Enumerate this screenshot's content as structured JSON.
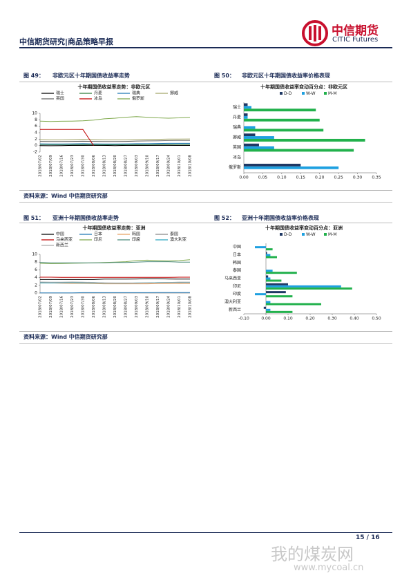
{
  "header": {
    "title": "中信期货研究|商品策略早报",
    "logo_cn": "中信期货",
    "logo_en": "CITIC Futures"
  },
  "figures": [
    {
      "number": "图 49：",
      "title": "非欧元区十年期国债收益率走势"
    },
    {
      "number": "图 50：",
      "title": "非欧元区十年期国债收益率价格表现"
    },
    {
      "number": "图 51：",
      "title": "亚洲十年期国债收益率走势"
    },
    {
      "number": "图 52：",
      "title": "亚洲十年期国债收益率价格表现"
    }
  ],
  "sources": [
    "资料来源：Wind 中信期货研究部",
    "资料来源：Wind 中信期货研究部"
  ],
  "chart_data": [
    {
      "type": "line",
      "title": "十年期国债收益率走势：非欧元区",
      "x": [
        "2018/07/02",
        "2018/07/09",
        "2018/07/16",
        "2018/07/23",
        "2018/07/30",
        "2018/08/06",
        "2018/08/13",
        "2018/08/20",
        "2018/08/27",
        "2018/09/03",
        "2018/09/10",
        "2018/09/17",
        "2018/09/24",
        "2018/10/01",
        "2018/10/08"
      ],
      "ylim": [
        -2,
        10
      ],
      "yticks": [
        -2,
        0,
        2,
        4,
        6,
        8,
        10
      ],
      "series": [
        {
          "name": "瑞士",
          "color": "#000000",
          "values": [
            0.0,
            -0.05,
            0.0,
            0.05,
            0.05,
            0.1,
            0.05,
            0.0,
            0.05,
            0.1,
            0.05,
            0.1,
            0.1,
            0.05,
            0.05
          ]
        },
        {
          "name": "丹麦",
          "color": "#2f7d3a",
          "values": [
            0.35,
            0.3,
            0.3,
            0.35,
            0.35,
            0.3,
            0.25,
            0.25,
            0.25,
            0.3,
            0.3,
            0.35,
            0.35,
            0.4,
            0.4
          ]
        },
        {
          "name": "瑞典",
          "color": "#1f77b4",
          "values": [
            0.55,
            0.5,
            0.5,
            0.55,
            0.6,
            0.55,
            0.5,
            0.5,
            0.55,
            0.6,
            0.6,
            0.65,
            0.7,
            0.7,
            0.7
          ]
        },
        {
          "name": "挪威",
          "color": "#a3a66a",
          "values": [
            1.85,
            1.8,
            1.8,
            1.85,
            1.9,
            1.85,
            1.8,
            1.8,
            1.8,
            1.85,
            1.9,
            1.95,
            2.0,
            2.0,
            2.05
          ]
        },
        {
          "name": "英国",
          "color": "#666666",
          "values": [
            1.3,
            1.25,
            1.25,
            1.3,
            1.35,
            1.3,
            1.25,
            1.25,
            1.3,
            1.4,
            1.45,
            1.5,
            1.55,
            1.6,
            1.6
          ]
        },
        {
          "name": "冰岛",
          "color": "#c00000",
          "values": [
            5,
            5,
            5,
            5,
            5,
            0,
            null,
            null,
            null,
            null,
            null,
            null,
            null,
            null,
            null
          ]
        },
        {
          "name": "俄罗斯",
          "color": "#7ea84a",
          "values": [
            7.6,
            7.5,
            7.55,
            7.6,
            7.7,
            7.9,
            8.3,
            8.5,
            8.8,
            9.0,
            8.8,
            8.6,
            8.5,
            8.6,
            8.8
          ]
        }
      ]
    },
    {
      "type": "hbar",
      "title": "十年期国债收益率变动百分点：非欧元区",
      "categories": [
        "瑞士",
        "丹麦",
        "瑞典",
        "挪威",
        "英国",
        "冰岛",
        "俄罗斯"
      ],
      "xlim": [
        0,
        0.35
      ],
      "xticks": [
        {
          "value": 0,
          "label": "0.00"
        },
        {
          "value": 0.05,
          "label": "0.05"
        },
        {
          "value": 0.1,
          "label": "0.10"
        },
        {
          "value": 0.15,
          "label": "0.15"
        },
        {
          "value": 0.2,
          "label": "0.20"
        },
        {
          "value": 0.25,
          "label": "0.25"
        },
        {
          "value": 0.3,
          "label": "0.30"
        },
        {
          "value": 0.35,
          "label": "0.35"
        }
      ],
      "series": [
        {
          "name": "D-D",
          "color": "#1f3864",
          "values": [
            0.01,
            0.01,
            0,
            0.03,
            0.04,
            0,
            0.15
          ]
        },
        {
          "name": "W-W",
          "color": "#1ea0e0",
          "values": [
            0.02,
            0.01,
            0.03,
            0.08,
            0.08,
            0,
            0.25
          ]
        },
        {
          "name": "M-M",
          "color": "#22b14c",
          "values": [
            0.19,
            0.2,
            0.21,
            0.32,
            0.29,
            0,
            0
          ]
        }
      ]
    },
    {
      "type": "line",
      "title": "十年期国债收益率走势：亚洲",
      "x": [
        "2018/07/02",
        "2018/07/09",
        "2018/07/16",
        "2018/07/23",
        "2018/07/30",
        "2018/08/06",
        "2018/08/13",
        "2018/08/20",
        "2018/08/27",
        "2018/09/03",
        "2018/09/10",
        "2018/09/17",
        "2018/09/24",
        "2018/10/01",
        "2018/10/08"
      ],
      "ylim": [
        0,
        10
      ],
      "yticks": [
        0,
        2,
        4,
        6,
        8,
        10
      ],
      "series": [
        {
          "name": "中国",
          "color": "#000000",
          "values": [
            3.5,
            3.5,
            3.5,
            3.5,
            3.5,
            3.5,
            3.6,
            3.6,
            3.6,
            3.65,
            3.7,
            3.7,
            3.65,
            3.6,
            3.6
          ]
        },
        {
          "name": "日本",
          "color": "#1f77b4",
          "values": [
            0.03,
            0.03,
            0.03,
            0.05,
            0.1,
            0.1,
            0.1,
            0.1,
            0.1,
            0.1,
            0.1,
            0.12,
            0.13,
            0.13,
            0.15
          ]
        },
        {
          "name": "韩国",
          "color": "#e8a060",
          "values": [
            2.6,
            2.6,
            2.55,
            2.5,
            2.5,
            2.45,
            2.4,
            2.4,
            2.4,
            2.4,
            2.4,
            2.45,
            2.45,
            2.5,
            2.45
          ]
        },
        {
          "name": "泰国",
          "color": "#888888",
          "values": [
            2.7,
            2.65,
            2.65,
            2.7,
            2.7,
            2.7,
            2.65,
            2.6,
            2.6,
            2.6,
            2.65,
            2.7,
            2.75,
            2.8,
            2.8
          ]
        },
        {
          "name": "马来西亚",
          "color": "#c00000",
          "values": [
            4.1,
            4.1,
            4.05,
            4.05,
            4.05,
            4.05,
            4.05,
            4.05,
            4.05,
            4.05,
            4.05,
            4.05,
            4.05,
            4.1,
            4.1
          ]
        },
        {
          "name": "印尼",
          "color": "#7ea84a",
          "values": [
            7.7,
            7.6,
            7.65,
            7.7,
            7.75,
            7.8,
            7.9,
            8.0,
            8.1,
            8.4,
            8.5,
            8.4,
            8.3,
            8.4,
            8.6
          ]
        },
        {
          "name": "印度",
          "color": "#4a8a7a",
          "values": [
            7.9,
            7.8,
            7.8,
            7.8,
            7.8,
            7.8,
            7.8,
            7.9,
            7.9,
            8.0,
            8.1,
            8.1,
            8.1,
            8.0,
            8.0
          ]
        },
        {
          "name": "澳大利亚",
          "color": "#2aa7c0",
          "values": [
            2.65,
            2.65,
            2.7,
            2.7,
            2.65,
            2.6,
            2.55,
            2.55,
            2.55,
            2.6,
            2.65,
            2.7,
            2.75,
            2.75,
            2.75
          ]
        },
        {
          "name": "新西兰",
          "color": "#aaaaaa",
          "values": [
            2.85,
            2.8,
            2.8,
            2.85,
            2.8,
            2.75,
            2.6,
            2.55,
            2.55,
            2.55,
            2.6,
            2.65,
            2.7,
            2.7,
            2.7
          ]
        }
      ]
    },
    {
      "type": "hbar",
      "title": "十年期国债收益率变动百分点：亚洲",
      "categories": [
        "中国",
        "日本",
        "韩国",
        "泰国",
        "马来西亚",
        "印尼",
        "印度",
        "澳大利亚",
        "新西兰"
      ],
      "xlim": [
        -0.1,
        0.5
      ],
      "xticks": [
        {
          "value": -0.1,
          "label": "-0.10"
        },
        {
          "value": 0,
          "label": "0.00"
        },
        {
          "value": 0.1,
          "label": "0.10"
        },
        {
          "value": 0.2,
          "label": "0.20"
        },
        {
          "value": 0.3,
          "label": "0.30"
        },
        {
          "value": 0.4,
          "label": "0.40"
        },
        {
          "value": 0.5,
          "label": "0.50"
        }
      ],
      "series": [
        {
          "name": "D-D",
          "color": "#1f3864",
          "values": [
            0,
            0.005,
            0,
            0,
            0.01,
            0.1,
            0.09,
            0,
            -0.01
          ]
        },
        {
          "name": "W-W",
          "color": "#1ea0e0",
          "values": [
            -0.05,
            0.02,
            0,
            0.03,
            0.02,
            0.34,
            -0.05,
            0.02,
            0.02
          ]
        },
        {
          "name": "M-M",
          "color": "#22b14c",
          "values": [
            0.03,
            0.05,
            0,
            0.14,
            0.07,
            0.39,
            0.12,
            0.25,
            0.12
          ]
        }
      ]
    }
  ],
  "footer": {
    "page": "15 / 16"
  },
  "watermark": {
    "cn": "我的煤炭网",
    "url": "www.mycoal.cn"
  }
}
